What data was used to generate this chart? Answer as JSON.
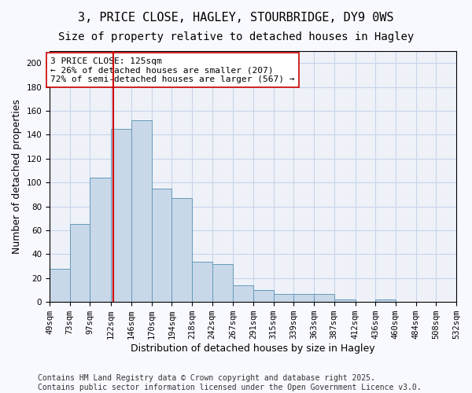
{
  "title_line1": "3, PRICE CLOSE, HAGLEY, STOURBRIDGE, DY9 0WS",
  "title_line2": "Size of property relative to detached houses in Hagley",
  "xlabel": "Distribution of detached houses by size in Hagley",
  "ylabel": "Number of detached properties",
  "bar_color": "#c8d8e8",
  "bar_edge_color": "#6699bb",
  "background_color": "#eef2f8",
  "vline_x": 125,
  "vline_color": "#cc0000",
  "bins": [
    49,
    73,
    97,
    122,
    146,
    170,
    194,
    218,
    242,
    267,
    291,
    315,
    339,
    363,
    387,
    412,
    436,
    460,
    484,
    508,
    532
  ],
  "bin_labels": [
    "49sqm",
    "73sqm",
    "97sqm",
    "122sqm",
    "146sqm",
    "170sqm",
    "194sqm",
    "218sqm",
    "242sqm",
    "267sqm",
    "291sqm",
    "315sqm",
    "339sqm",
    "363sqm",
    "387sqm",
    "412sqm",
    "436sqm",
    "460sqm",
    "484sqm",
    "508sqm",
    "532sqm"
  ],
  "counts": [
    28,
    65,
    104,
    145,
    152,
    95,
    87,
    34,
    32,
    14,
    10,
    7,
    7,
    7,
    2,
    0,
    2,
    0,
    0,
    0
  ],
  "annotation_text": "3 PRICE CLOSE: 125sqm\n← 26% of detached houses are smaller (207)\n72% of semi-detached houses are larger (567) →",
  "annotation_box_color": "#ffffff",
  "annotation_border_color": "#cc0000",
  "footer_text": "Contains HM Land Registry data © Crown copyright and database right 2025.\nContains public sector information licensed under the Open Government Licence v3.0.",
  "ylim": [
    0,
    210
  ],
  "yticks": [
    0,
    20,
    40,
    60,
    80,
    100,
    120,
    140,
    160,
    180,
    200
  ],
  "grid_color": "#c8d4e8",
  "title_fontsize": 11,
  "subtitle_fontsize": 10,
  "axis_label_fontsize": 9,
  "tick_fontsize": 7.5,
  "annotation_fontsize": 8,
  "footer_fontsize": 7
}
